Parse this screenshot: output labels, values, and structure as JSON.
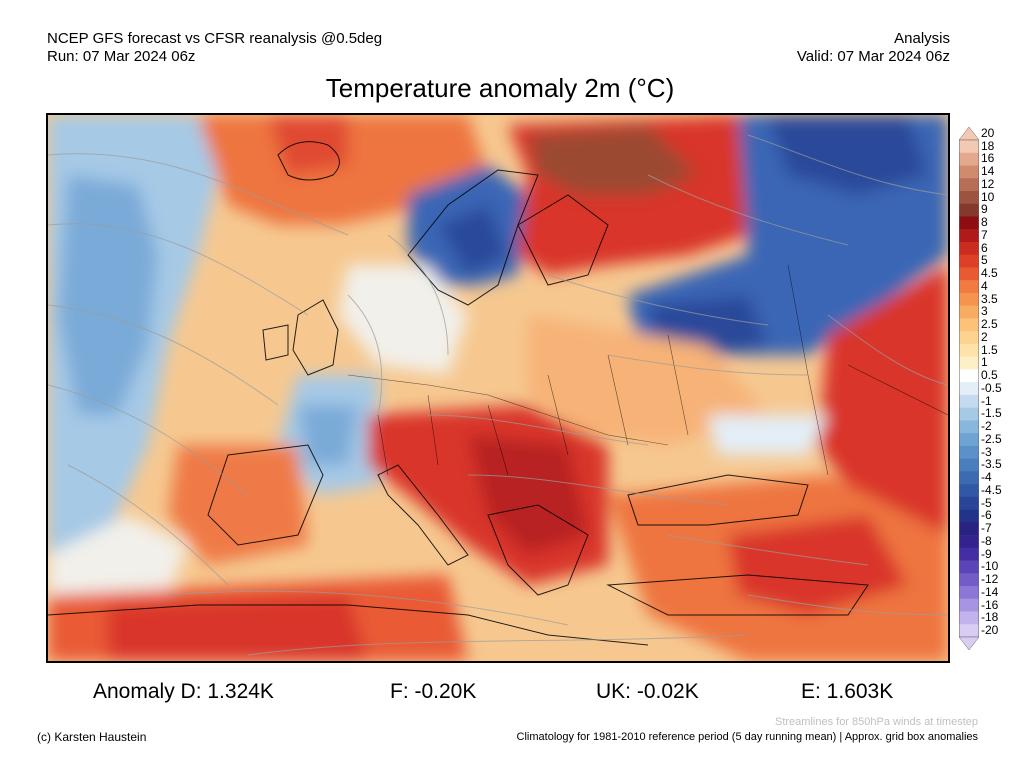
{
  "header": {
    "line1": "NCEP GFS forecast vs CFSR reanalysis @0.5deg",
    "line2": "Run: 07 Mar 2024 06z",
    "right1": "Analysis",
    "right2": "Valid: 07 Mar 2024 06z"
  },
  "title": "Temperature anomaly 2m (°C)",
  "colorbar": {
    "labels": [
      "20",
      "18",
      "16",
      "14",
      "12",
      "10",
      "9",
      "8",
      "7",
      "6",
      "5",
      "4.5",
      "4",
      "3.5",
      "3",
      "2.5",
      "2",
      "1.5",
      "1",
      "0.5",
      "-0.5",
      "-1",
      "-1.5",
      "-2",
      "-2.5",
      "-3",
      "-3.5",
      "-4",
      "-4.5",
      "-5",
      "-6",
      "-7",
      "-8",
      "-9",
      "-10",
      "-12",
      "-14",
      "-16",
      "-18",
      "-20"
    ],
    "colors": [
      "#f3c9b3",
      "#e4a98c",
      "#d08b6f",
      "#b86e56",
      "#9c5440",
      "#84392c",
      "#8e0d10",
      "#b01a1a",
      "#cb2c20",
      "#de3f27",
      "#ea5a32",
      "#f07a3f",
      "#f5944f",
      "#f8ac61",
      "#fbc278",
      "#fdd48f",
      "#fde3a8",
      "#fef0c6",
      "#ffffff",
      "#e3eef7",
      "#c4dbef",
      "#a6c9e6",
      "#88b7de",
      "#6ea4d3",
      "#5a91c8",
      "#4a7ebd",
      "#3c6bb1",
      "#3158a5",
      "#284597",
      "#22348a",
      "#2a2280",
      "#34238c",
      "#452ea3",
      "#5b44b6",
      "#745cc7",
      "#8d77d6",
      "#a895e2",
      "#c2b3ec",
      "#d9cdf4"
    ]
  },
  "stats": {
    "d": "Anomaly D: 1.324K",
    "f": "F: -0.20K",
    "uk": "UK: -0.02K",
    "e": "E: 1.603K"
  },
  "footer": {
    "credit": "(c) Karsten Haustein",
    "streamlines": "Streamlines for 850hPa winds at timestep",
    "climatology": "Climatology for 1981-2010 reference period (5 day running mean) | Approx. grid box anomalies"
  },
  "map": {
    "colors": {
      "ocean_base": "#f6c890",
      "strong_warm": "#d9342a",
      "warm": "#ef7a46",
      "mild": "#f7b277",
      "very_warm_brown": "#9c4a32",
      "cold_blue": "#3a66b5",
      "cool_blue": "#8fbbe0",
      "neutral": "#f2f0ea"
    }
  }
}
